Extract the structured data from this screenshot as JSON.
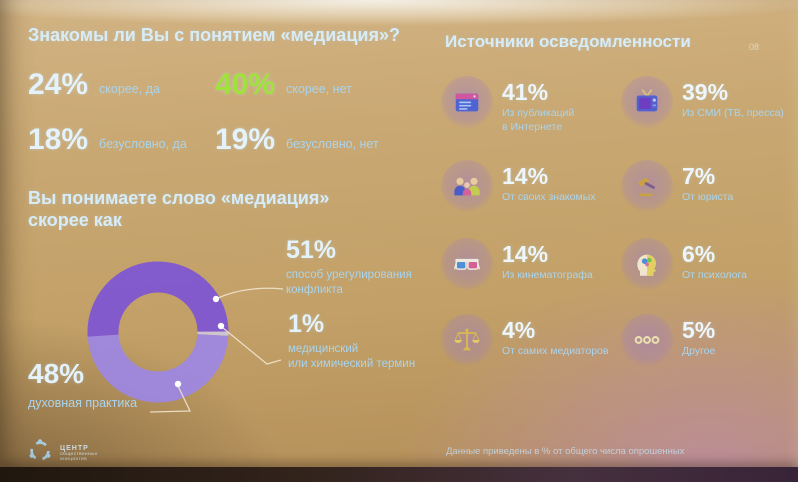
{
  "page": {
    "number": "08",
    "footnote": "Данные приведены в % от общего числа опрошенных"
  },
  "familiarity": {
    "title": "Знакомы ли Вы с понятием «медиация»?",
    "stats": [
      {
        "value": "24%",
        "label": "скорее, да"
      },
      {
        "value": "40%",
        "label": "скорее, нет"
      },
      {
        "value": "18%",
        "label": "безусловно, да"
      },
      {
        "value": "19%",
        "label": "безусловно, нет"
      }
    ]
  },
  "understanding": {
    "title": "Вы понимаете слово «медиация»\nскорее как",
    "callouts": [
      {
        "value": "51%",
        "text": "способ урегулирования\nконфликта"
      },
      {
        "value": "1%",
        "text": "медицинский\nили химический термин"
      },
      {
        "value": "48%",
        "text": "духовная практика"
      }
    ]
  },
  "sources": {
    "title": "Источники осведомленности",
    "items": [
      {
        "value": "41%",
        "label": "Из публикаций\nв Интернете",
        "icon": "internet-article-icon"
      },
      {
        "value": "39%",
        "label": "Из СМИ (ТВ, пресса)",
        "icon": "tv-icon"
      },
      {
        "value": "14%",
        "label": "От своих знакомых",
        "icon": "people-icon"
      },
      {
        "value": "7%",
        "label": "От юриста",
        "icon": "gavel-icon"
      },
      {
        "value": "14%",
        "label": "Из кинематографа",
        "icon": "cinema-glasses-icon"
      },
      {
        "value": "6%",
        "label": "От психолога",
        "icon": "psychologist-head-icon"
      },
      {
        "value": "4%",
        "label": "От самих медиаторов",
        "icon": "scales-icon"
      },
      {
        "value": "5%",
        "label": "Другое",
        "icon": "ellipsis-icon"
      }
    ]
  },
  "logo": {
    "line1": "ЦЕНТР",
    "line2": "общественных",
    "line3": "инициатив"
  },
  "colors": {
    "accent_green": "#9fe23c",
    "heading": "#d6edf9",
    "number": "#e3f2fb",
    "label": "#a9d4ee",
    "donut_main": "#7d55d4",
    "donut_secondary": "#9d87e3",
    "donut_small": "#cfc8da"
  },
  "chart_data": [
    {
      "type": "table",
      "title": "Знакомы ли Вы с понятием «медиация»?",
      "categories": [
        "скорее, да",
        "скорее, нет",
        "безусловно, да",
        "безусловно, нет"
      ],
      "values": [
        24,
        40,
        18,
        19
      ],
      "unit": "%"
    },
    {
      "type": "pie",
      "donut": true,
      "title": "Вы понимаете слово «медиация» скорее как",
      "categories": [
        "способ урегулирования конфликта",
        "медицинский или химический термин",
        "духовная практика"
      ],
      "values": [
        51,
        1,
        48
      ],
      "colors": [
        "#7d55d4",
        "#cfc8da",
        "#9d87e3"
      ],
      "unit": "%",
      "legend_position": "callouts"
    },
    {
      "type": "table",
      "title": "Источники осведомленности",
      "categories": [
        "Из публикаций в Интернете",
        "Из СМИ (ТВ, пресса)",
        "От своих знакомых",
        "От юриста",
        "Из кинематографа",
        "От психолога",
        "От самих медиаторов",
        "Другое"
      ],
      "values": [
        41,
        39,
        14,
        7,
        14,
        6,
        4,
        5
      ],
      "unit": "%"
    }
  ]
}
